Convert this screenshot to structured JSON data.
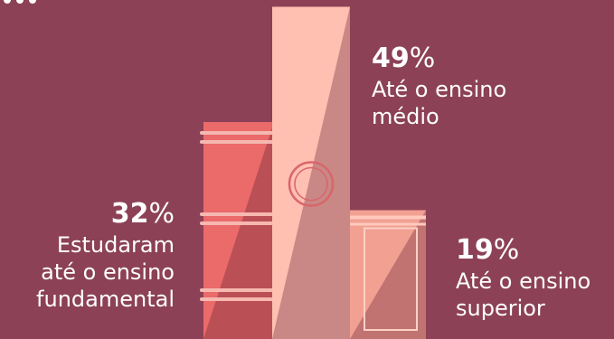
{
  "theme": {
    "background": "#8c4156",
    "book_colors": [
      "#eb6a6a",
      "#ffbfb1",
      "#f2a092"
    ],
    "label_color": "#ffffff"
  },
  "chart_data": {
    "type": "bar",
    "categories": [
      "Estudaram até o ensino fundamental",
      "Até o ensino médio",
      "Até o ensino superior"
    ],
    "values": [
      32,
      49,
      19
    ],
    "unit": "%",
    "labels": [
      {
        "number": "32",
        "suffix": "%",
        "text": "Estudaram\naté o ensino\nfundamental"
      },
      {
        "number": "49",
        "suffix": "%",
        "text": "Até o ensino\nmédio"
      },
      {
        "number": "19",
        "suffix": "%",
        "text": "Até o ensino\nsuperior"
      }
    ]
  }
}
